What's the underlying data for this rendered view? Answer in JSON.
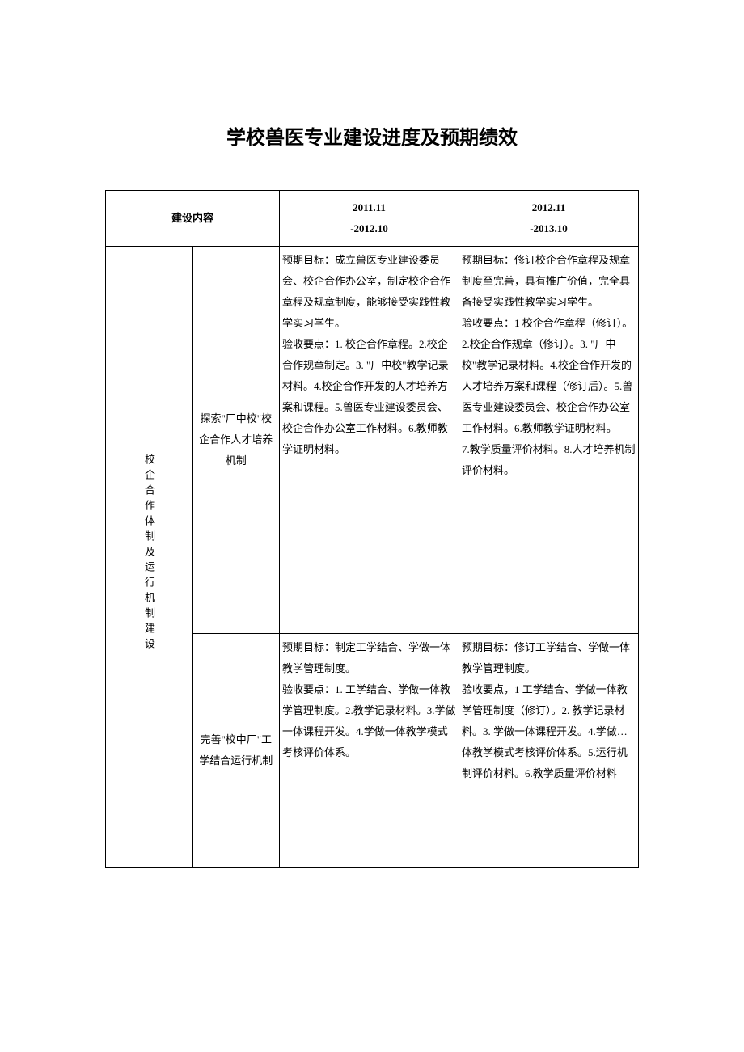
{
  "document": {
    "title": "学校兽医专业建设进度及预期绩效",
    "title_fontsize": 24,
    "title_fontweight": "bold",
    "background_color": "#ffffff",
    "text_color": "#000000",
    "border_color": "#000000",
    "body_fontsize": 13,
    "line_height": 2.0
  },
  "table": {
    "header": {
      "content_label": "建设内容",
      "period1": "2011.11\n-2012.10",
      "period2": "2012.11\n-2013.10"
    },
    "category": {
      "label": "校企合作体制及运行机制建设"
    },
    "rows": [
      {
        "subtitle": "探索\"厂中校\"校企合作人才培养机制",
        "period1_text": "预期目标：成立兽医专业建设委员会、校企合作办公室，制定校企合作章程及规章制度，能够接受实践性教学实习学生。\n验收要点：1. 校企合作章程。2.校企合作规章制定。3. \"厂中校\"教学记录材料。4.校企合作开发的人才培养方案和课程。5.兽医专业建设委员会、校企合作办公室工作材料。6.教师教学证明材料。",
        "period2_text": "预期目标：修订校企合作章程及规章制度至完善，具有推广价值，完全具备接受实践性教学实习学生。\n验收要点：1 校企合作章程（修订）。2.校企合作规章（修订）。3. \"厂中校\"教学记录材料。4.校企合作开发的人才培养方案和课程（修订后）。5.兽医专业建设委员会、校企合作办公室工作材料。6.教师教学证明材料。\n7.教学质量评价材料。8.人才培养机制评价材料。"
      },
      {
        "subtitle": "完善\"校中厂\"工学结合运行机制",
        "period1_text": "预期目标：制定工学结合、学做一体教学管理制度。\n验收要点：1. 工学结合、学做一体教学管理制度。2.教学记录材料。3.学做一体课程开发。4.学做一体教学模式考核评价体系。",
        "period2_text": "预期目标：修订工学结合、学做一体教学管理制度。\n验收要点，1 工学结合、学做一体教学管理制度（修订）。2. 教学记录材料。3. 学做一体课程开发。4.学做…体教学模式考核评价体系。5.运行机制评价材料。6.教学质量评价材料"
      }
    ],
    "column_widths": {
      "category": 28,
      "subtitle": 200,
      "period": 215
    }
  }
}
